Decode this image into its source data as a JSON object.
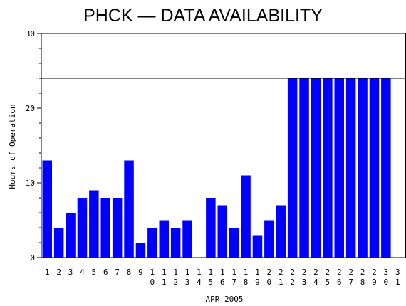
{
  "chart_data": {
    "type": "bar",
    "title": "PHCK — DATA AVAILABILITY",
    "xlabel": "APR 2005",
    "ylabel": "Hours of Operation",
    "ylim": [
      0,
      30
    ],
    "yticks": [
      0,
      10,
      20,
      30
    ],
    "reference_line": 24,
    "grid": false,
    "bar_color": "#0000ff",
    "categories": [
      "1",
      "2",
      "3",
      "4",
      "5",
      "6",
      "7",
      "8",
      "9",
      "10",
      "11",
      "12",
      "13",
      "14",
      "15",
      "16",
      "17",
      "18",
      "19",
      "20",
      "21",
      "22",
      "23",
      "24",
      "25",
      "26",
      "27",
      "28",
      "29",
      "30",
      "31"
    ],
    "values": [
      13,
      4,
      6,
      8,
      9,
      8,
      8,
      13,
      2,
      4,
      5,
      4,
      5,
      0,
      8,
      7,
      4,
      11,
      3,
      5,
      7,
      24,
      24,
      24,
      24,
      24,
      24,
      24,
      24,
      24,
      null
    ]
  }
}
